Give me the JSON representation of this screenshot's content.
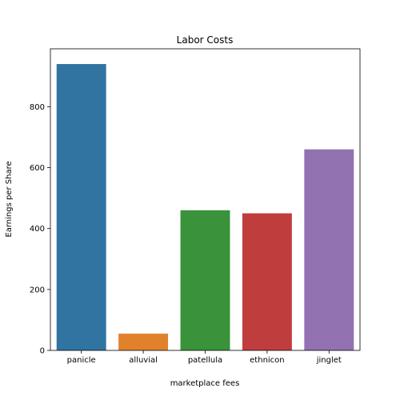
{
  "chart_data": {
    "type": "bar",
    "title": "Labor Costs",
    "xlabel": "marketplace fees",
    "ylabel": "Earnings per Share",
    "categories": [
      "panicle",
      "alluvial",
      "patellula",
      "ethnicon",
      "jinglet"
    ],
    "values": [
      940,
      55,
      460,
      450,
      660
    ],
    "colors": [
      "#3274a1",
      "#e1812c",
      "#3a923a",
      "#c03d3e",
      "#9372b2"
    ],
    "ylim": [
      0,
      990
    ],
    "yticks": [
      0,
      200,
      400,
      600,
      800
    ],
    "grid": false,
    "legend": "none"
  }
}
